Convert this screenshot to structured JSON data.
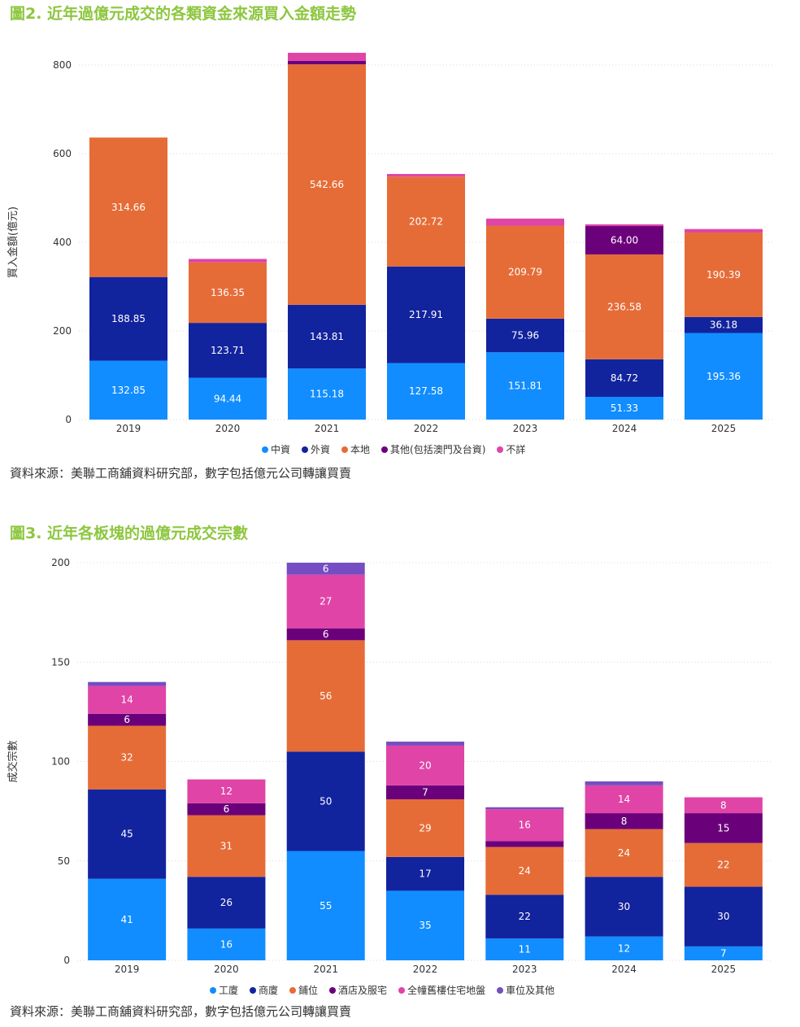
{
  "source_note": "資料來源：美聯工商舖資料研究部，數字包括億元公司轉讓買賣",
  "chart_data": [
    {
      "type": "bar",
      "stacked": true,
      "title": "圖2. 近年過億元成交的各類資金來源買入金額走勢",
      "xlabel": "",
      "ylabel": "買入金額(億元)",
      "ylim": [
        0,
        800
      ],
      "yticks": [
        0,
        200,
        400,
        600,
        800
      ],
      "categories": [
        "2019",
        "2020",
        "2021",
        "2022",
        "2023",
        "2024",
        "2025"
      ],
      "series": [
        {
          "name": "中資",
          "color": "#118dff",
          "values": [
            132.85,
            94.44,
            115.18,
            127.58,
            151.81,
            51.33,
            195.36
          ],
          "labels": [
            "132.85",
            "94.44",
            "115.18",
            "127.58",
            "151.81",
            "51.33",
            "195.36"
          ]
        },
        {
          "name": "外資",
          "color": "#12239e",
          "values": [
            188.85,
            123.71,
            143.81,
            217.91,
            75.96,
            84.72,
            36.18
          ],
          "labels": [
            "188.85",
            "123.71",
            "143.81",
            "217.91",
            "75.96",
            "84.72",
            "36.18"
          ]
        },
        {
          "name": "本地",
          "color": "#e66c37",
          "values": [
            314.66,
            136.35,
            542.66,
            202.72,
            209.79,
            236.58,
            190.39
          ],
          "labels": [
            "314.66",
            "136.35",
            "542.66",
            "202.72",
            "209.79",
            "236.58",
            "190.39"
          ]
        },
        {
          "name": "其他(包括澳門及台資)",
          "color": "#6b007b",
          "values": [
            0,
            0,
            8,
            0,
            0,
            64.0,
            0
          ],
          "labels": [
            "",
            "",
            "",
            "",
            "",
            "64.00",
            ""
          ]
        },
        {
          "name": "不詳",
          "color": "#e044a7",
          "values": [
            0,
            8,
            18,
            6,
            16,
            4,
            8
          ],
          "labels": [
            "",
            "",
            "",
            "",
            "",
            "",
            ""
          ]
        }
      ]
    },
    {
      "type": "bar",
      "stacked": true,
      "title": "圖3. 近年各板塊的過億元成交宗數",
      "xlabel": "",
      "ylabel": "成交宗數",
      "ylim": [
        0,
        200
      ],
      "yticks": [
        0,
        50,
        100,
        150,
        200
      ],
      "categories": [
        "2019",
        "2020",
        "2021",
        "2022",
        "2023",
        "2024",
        "2025"
      ],
      "series": [
        {
          "name": "工廈",
          "color": "#118dff",
          "values": [
            41,
            16,
            55,
            35,
            11,
            12,
            7
          ],
          "labels": [
            "41",
            "16",
            "55",
            "35",
            "11",
            "12",
            "7"
          ]
        },
        {
          "name": "商廈",
          "color": "#12239e",
          "values": [
            45,
            26,
            50,
            17,
            22,
            30,
            30
          ],
          "labels": [
            "45",
            "26",
            "50",
            "17",
            "22",
            "30",
            "30"
          ]
        },
        {
          "name": "鋪位",
          "color": "#e66c37",
          "values": [
            32,
            31,
            56,
            29,
            24,
            24,
            22
          ],
          "labels": [
            "32",
            "31",
            "56",
            "29",
            "24",
            "24",
            "22"
          ]
        },
        {
          "name": "酒店及服宅",
          "color": "#6b007b",
          "values": [
            6,
            6,
            6,
            7,
            3,
            8,
            15
          ],
          "labels": [
            "6",
            "6",
            "6",
            "7",
            "",
            "8",
            "15"
          ]
        },
        {
          "name": "全幢舊樓住宅地盤",
          "color": "#e044a7",
          "values": [
            14,
            12,
            27,
            20,
            16,
            14,
            8
          ],
          "labels": [
            "14",
            "12",
            "27",
            "20",
            "16",
            "14",
            "8"
          ]
        },
        {
          "name": "車位及其他",
          "color": "#744ec2",
          "values": [
            2,
            0,
            6,
            2,
            1,
            2,
            0
          ],
          "labels": [
            "",
            "",
            "6",
            "",
            "",
            "",
            ""
          ]
        }
      ]
    }
  ]
}
